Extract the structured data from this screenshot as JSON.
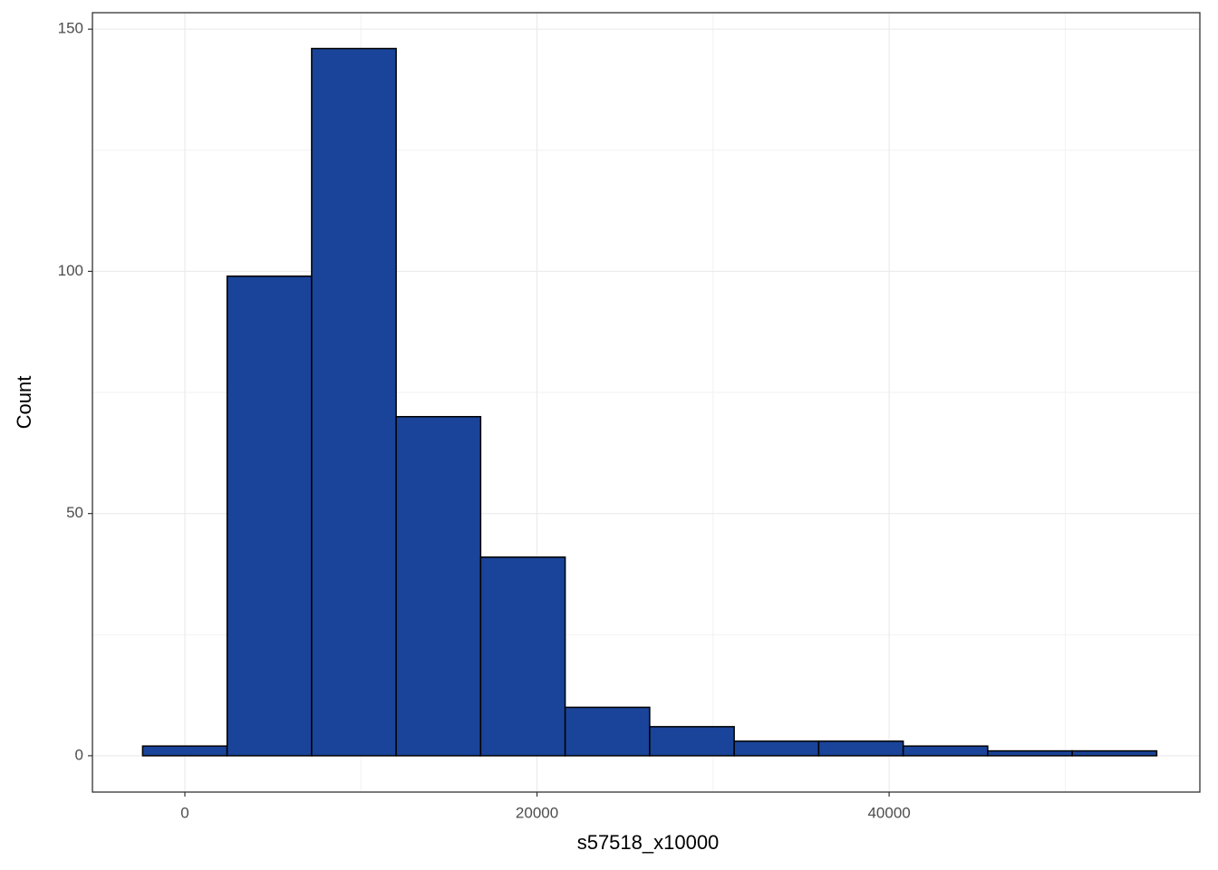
{
  "chart_data": {
    "type": "histogram",
    "x_label": "s57518_x10000",
    "y_label": "Count",
    "bins": [
      -2400,
      2400,
      7200,
      12000,
      16800,
      21600,
      26400,
      31200,
      36000,
      40800,
      45600,
      50400,
      55200
    ],
    "values": [
      2,
      99,
      146,
      70,
      41,
      10,
      6,
      3,
      3,
      2,
      1,
      1
    ],
    "color": "#1a4499",
    "edge_color": "#000000",
    "xlim": [
      -5250,
      57650
    ],
    "ylim": [
      -7.5,
      153.4
    ],
    "xticks": [
      0,
      20000,
      40000
    ],
    "yticks": [
      0,
      50,
      100,
      150
    ],
    "grid": true
  }
}
